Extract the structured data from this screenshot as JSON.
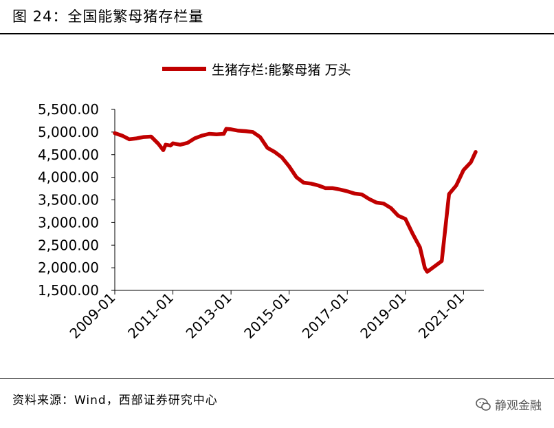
{
  "figure_title": "图 24：全国能繁母猪存栏量",
  "source": "资料来源：Wind，西部证券研究中心",
  "brand_name": "静观金融",
  "colors": {
    "series": "#C00000",
    "text": "#000000",
    "brand": "#5A5A5A"
  },
  "chart_data": {
    "type": "line",
    "title": "",
    "xlabel": "",
    "ylabel": "",
    "ylim": [
      1500,
      5500
    ],
    "yticks": [
      1500,
      2000,
      2500,
      3000,
      3500,
      4000,
      4500,
      5000,
      5500
    ],
    "ytick_labels": [
      "1,500.00",
      "2,000.00",
      "2,500.00",
      "3,000.00",
      "3,500.00",
      "4,000.00",
      "4,500.00",
      "5,000.00",
      "5,500.00"
    ],
    "xticks": [
      "2009-01",
      "2011-01",
      "2013-01",
      "2015-01",
      "2017-01",
      "2019-01",
      "2021-01"
    ],
    "legend": {
      "position": "top",
      "label": "生猪存栏:能繁母猪 万头"
    },
    "grid": false,
    "series": [
      {
        "name": "生猪存栏:能繁母猪 万头",
        "points": [
          [
            "2009-01",
            4975
          ],
          [
            "2009-04",
            4920
          ],
          [
            "2009-07",
            4840
          ],
          [
            "2009-10",
            4860
          ],
          [
            "2010-01",
            4890
          ],
          [
            "2010-04",
            4900
          ],
          [
            "2010-07",
            4740
          ],
          [
            "2010-09",
            4600
          ],
          [
            "2010-10",
            4720
          ],
          [
            "2010-12",
            4700
          ],
          [
            "2011-01",
            4750
          ],
          [
            "2011-04",
            4720
          ],
          [
            "2011-07",
            4760
          ],
          [
            "2011-10",
            4860
          ],
          [
            "2012-01",
            4920
          ],
          [
            "2012-04",
            4960
          ],
          [
            "2012-07",
            4950
          ],
          [
            "2012-10",
            4960
          ],
          [
            "2012-11",
            5070
          ],
          [
            "2013-01",
            5060
          ],
          [
            "2013-04",
            5030
          ],
          [
            "2013-07",
            5020
          ],
          [
            "2013-10",
            5000
          ],
          [
            "2014-01",
            4890
          ],
          [
            "2014-04",
            4650
          ],
          [
            "2014-07",
            4560
          ],
          [
            "2014-10",
            4440
          ],
          [
            "2015-01",
            4240
          ],
          [
            "2015-04",
            4000
          ],
          [
            "2015-07",
            3880
          ],
          [
            "2015-10",
            3860
          ],
          [
            "2016-01",
            3820
          ],
          [
            "2016-04",
            3760
          ],
          [
            "2016-07",
            3760
          ],
          [
            "2016-10",
            3730
          ],
          [
            "2017-01",
            3690
          ],
          [
            "2017-04",
            3640
          ],
          [
            "2017-07",
            3620
          ],
          [
            "2017-10",
            3520
          ],
          [
            "2018-01",
            3440
          ],
          [
            "2018-04",
            3420
          ],
          [
            "2018-07",
            3320
          ],
          [
            "2018-10",
            3150
          ],
          [
            "2019-01",
            3080
          ],
          [
            "2019-04",
            2750
          ],
          [
            "2019-07",
            2450
          ],
          [
            "2019-09",
            2000
          ],
          [
            "2019-10",
            1910
          ],
          [
            "2020-01",
            2030
          ],
          [
            "2020-04",
            2150
          ],
          [
            "2020-07",
            3630
          ],
          [
            "2020-10",
            3820
          ],
          [
            "2021-01",
            4160
          ],
          [
            "2021-04",
            4330
          ],
          [
            "2021-06",
            4560
          ]
        ]
      }
    ]
  }
}
